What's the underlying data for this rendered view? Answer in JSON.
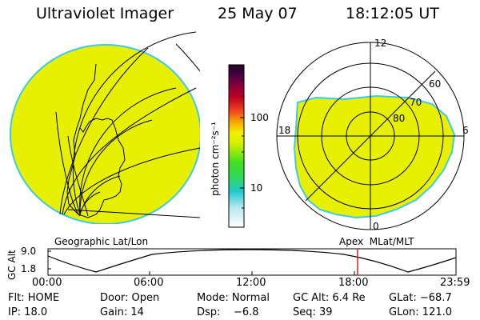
{
  "header": {
    "instrument": "Ultraviolet Imager",
    "date": "25 May 07",
    "time": "18:12:05 UT"
  },
  "colorbar": {
    "label": "photon cm⁻²s⁻¹",
    "ticks": [
      "100",
      "10"
    ],
    "scale": "log"
  },
  "polar_plot": {
    "labels": {
      "top": "12",
      "left": "18",
      "right": "6",
      "bottom": "0"
    },
    "lat_labels": [
      "60",
      "70",
      "80"
    ],
    "caption": "Apex  MLat/MLT"
  },
  "geo_plot": {
    "caption": "Geographic Lat/Lon"
  },
  "altitude_panel": {
    "axis_label": "GC Alt",
    "y_ticks": [
      "9.0",
      "1.8"
    ],
    "x_ticks": [
      "00:00",
      "06:00",
      "12:00",
      "18:00",
      "23:59"
    ],
    "marker_time": "18:12:05",
    "marker_color": "#e02020"
  },
  "footer": {
    "row1": [
      {
        "key": "flt",
        "text": "Flt: HOME"
      },
      {
        "key": "door",
        "text": "Door: Open"
      },
      {
        "key": "mode",
        "text": "Mode: Normal"
      },
      {
        "key": "gcalt",
        "text": "GC Alt: 6.4 Re"
      },
      {
        "key": "glat",
        "text": "GLat: −68.7"
      }
    ],
    "row2": [
      {
        "key": "ip",
        "text": "IP: 18.0"
      },
      {
        "key": "gain",
        "text": "Gain: 14"
      },
      {
        "key": "dsp",
        "text": "Dsp:    −6.8"
      },
      {
        "key": "seq",
        "text": "Seq: 39"
      },
      {
        "key": "glon",
        "text": "GLon: 121.0"
      }
    ]
  },
  "colors": {
    "aurora_fill": "#e6f000",
    "aurora_edge": "#3fc8e8",
    "line": "#000000"
  }
}
